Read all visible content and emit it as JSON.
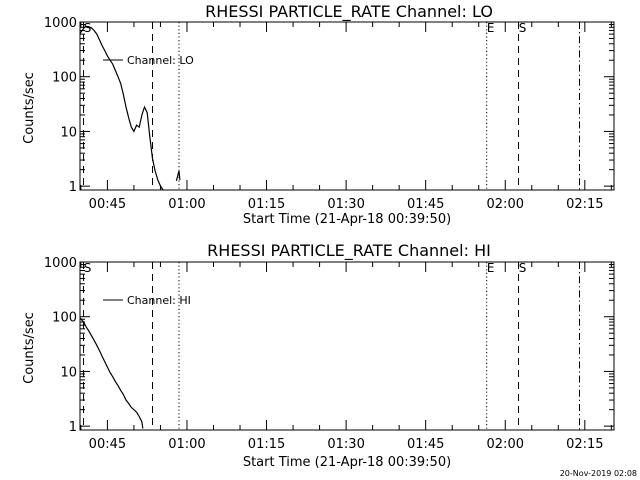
{
  "timestamp": "20-Nov-2019 02:08",
  "chart_data": [
    {
      "type": "line",
      "title": "RHESSI PARTICLE_RATE Channel: LO",
      "xlabel": "Start Time (21-Apr-18 00:39:50)",
      "ylabel": "Counts/sec",
      "y_scale": "log",
      "ylim": [
        0.85,
        1000
      ],
      "xlim": [
        "00:39:50",
        "02:20:30"
      ],
      "x_tick_labels": [
        "00:45",
        "01:00",
        "01:15",
        "01:30",
        "01:45",
        "02:00",
        "02:15"
      ],
      "y_tick_labels": [
        "1",
        "10",
        "100",
        "1000"
      ],
      "legend": "Channel: LO",
      "legend_position": "upper-left",
      "markers": [
        {
          "time": "00:40:30",
          "style": "dash",
          "label": "S"
        },
        {
          "time": "00:53:30",
          "style": "dash",
          "label": ""
        },
        {
          "time": "00:58:30",
          "style": "dot",
          "label": ""
        },
        {
          "time": "01:56:30",
          "style": "dot",
          "label": "E"
        },
        {
          "time": "02:02:30",
          "style": "dash",
          "label": "S"
        },
        {
          "time": "02:14:00",
          "style": "dash-dot",
          "label": ""
        }
      ],
      "series": [
        {
          "name": "Channel: LO",
          "x": [
            "00:39:50",
            "00:40:20",
            "00:40:40",
            "00:41:00",
            "00:41:30",
            "00:42:00",
            "00:42:30",
            "00:43:00",
            "00:43:30",
            "00:44:00",
            "00:44:30",
            "00:45:00",
            "00:45:30",
            "00:46:00",
            "00:46:30",
            "00:47:00",
            "00:47:30",
            "00:48:00",
            "00:48:30",
            "00:49:00",
            "00:49:30",
            "00:50:00",
            "00:50:30",
            "00:51:00",
            "00:51:30",
            "00:52:00",
            "00:52:30",
            "00:53:00",
            "00:53:30",
            "00:54:00",
            "00:54:30",
            "00:55:00",
            "00:55:30",
            "00:56:00",
            "00:56:30",
            "00:57:00",
            "00:57:30",
            "00:58:00",
            "00:58:30",
            "00:58:40"
          ],
          "y": [
            620,
            720,
            800,
            830,
            820,
            780,
            700,
            600,
            470,
            370,
            300,
            240,
            200,
            170,
            130,
            100,
            75,
            48,
            28,
            18,
            12,
            10,
            13,
            12,
            20,
            28,
            22,
            8,
            3.2,
            1.9,
            1.3,
            1,
            0.85,
            null,
            null,
            null,
            null,
            1.25,
            1.9,
            1.3
          ]
        }
      ]
    },
    {
      "type": "line",
      "title": "RHESSI PARTICLE_RATE Channel: HI",
      "xlabel": "Start Time (21-Apr-18 00:39:50)",
      "ylabel": "Counts/sec",
      "y_scale": "log",
      "ylim": [
        0.85,
        1000
      ],
      "xlim": [
        "00:39:50",
        "02:20:30"
      ],
      "x_tick_labels": [
        "00:45",
        "01:00",
        "01:15",
        "01:30",
        "01:45",
        "02:00",
        "02:15"
      ],
      "y_tick_labels": [
        "1",
        "10",
        "100",
        "1000"
      ],
      "legend": "Channel: HI",
      "legend_position": "upper-left",
      "markers": [
        {
          "time": "00:40:30",
          "style": "dash",
          "label": "S"
        },
        {
          "time": "00:53:30",
          "style": "dash",
          "label": ""
        },
        {
          "time": "00:58:30",
          "style": "dot",
          "label": ""
        },
        {
          "time": "01:56:30",
          "style": "dot",
          "label": "E"
        },
        {
          "time": "02:02:30",
          "style": "dash",
          "label": "S"
        },
        {
          "time": "02:14:00",
          "style": "dash-dot",
          "label": ""
        }
      ],
      "series": [
        {
          "name": "Channel: HI",
          "x": [
            "00:39:50",
            "00:40:30",
            "00:41:00",
            "00:41:30",
            "00:42:00",
            "00:42:30",
            "00:43:00",
            "00:43:30",
            "00:44:00",
            "00:44:30",
            "00:45:00",
            "00:45:30",
            "00:46:00",
            "00:46:30",
            "00:47:00",
            "00:47:30",
            "00:48:00",
            "00:48:30",
            "00:49:00",
            "00:49:30",
            "00:50:00",
            "00:50:30",
            "00:51:00",
            "00:51:30",
            "00:51:40"
          ],
          "y": [
            95,
            80,
            65,
            55,
            45,
            37,
            30,
            24,
            19,
            15,
            12,
            9.5,
            8,
            6.5,
            5.5,
            4.5,
            3.8,
            3.0,
            2.6,
            2.2,
            2.0,
            1.8,
            1.5,
            1.2,
            0.9
          ]
        }
      ]
    }
  ]
}
